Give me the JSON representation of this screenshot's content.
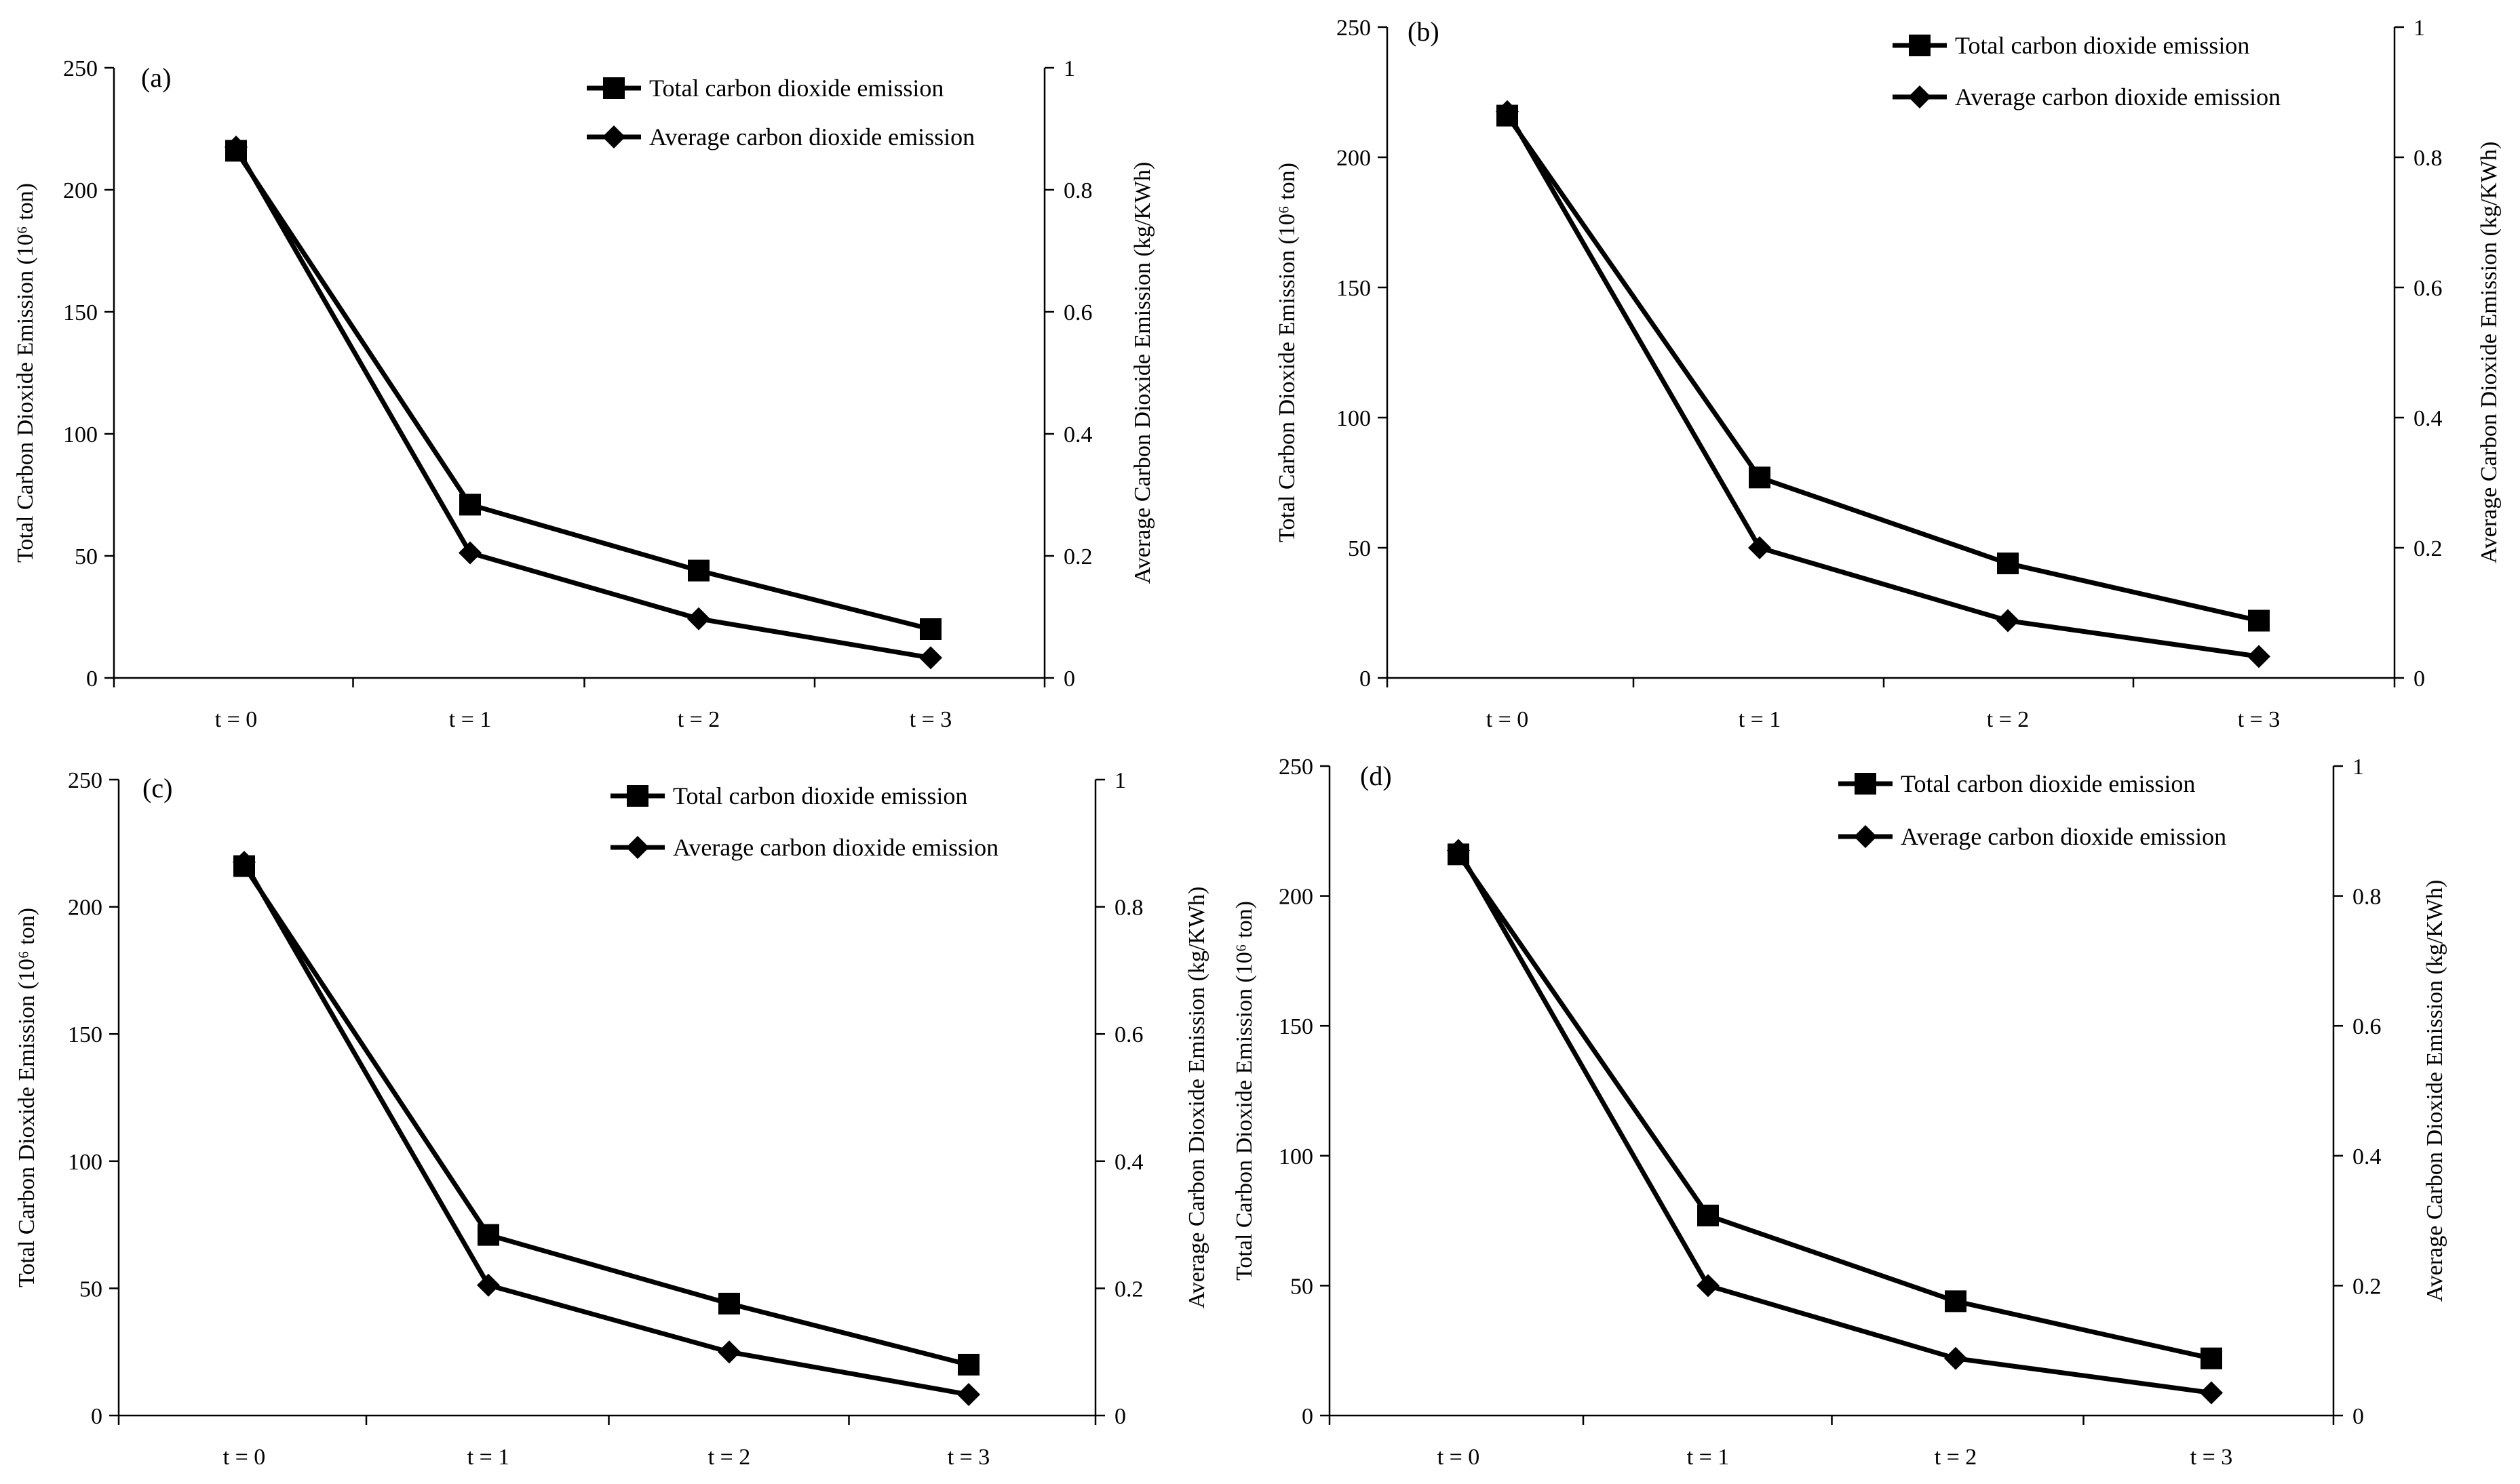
{
  "chart_data": [
    {
      "type": "line",
      "panel_label": "(a)",
      "categories": [
        "t = 0",
        "t = 1",
        "t = 2",
        "t = 3"
      ],
      "ylabel": "Total Carbon Dioxide Emission (10⁶ ton)",
      "y2label": "Average Carbon Dioxide Emission (kg/KWh)",
      "ylim": [
        0,
        250
      ],
      "yticks": [
        "0",
        "50",
        "100",
        "150",
        "200",
        "250"
      ],
      "y2lim": [
        0,
        1
      ],
      "y2ticks": [
        "0",
        "0.2",
        "0.4",
        "0.6",
        "0.8",
        "1"
      ],
      "legend_position": "top-right",
      "series": [
        {
          "name": "Total carbon dioxide emission",
          "axis": "left",
          "marker": "square",
          "values": [
            216,
            71,
            44,
            20
          ]
        },
        {
          "name": "Average carbon dioxide emission",
          "axis": "right",
          "marker": "diamond",
          "values": [
            0.87,
            0.205,
            0.097,
            0.033
          ]
        }
      ]
    },
    {
      "type": "line",
      "panel_label": "(b)",
      "categories": [
        "t = 0",
        "t = 1",
        "t = 2",
        "t = 3"
      ],
      "ylabel": "Total Carbon Dioxide Emission (10⁶ ton)",
      "y2label": "Average Carbon Dioxide Emission (kg/KWh)",
      "ylim": [
        0,
        250
      ],
      "yticks": [
        "0",
        "50",
        "100",
        "150",
        "200",
        "250"
      ],
      "y2lim": [
        0,
        1
      ],
      "y2ticks": [
        "0",
        "0.2",
        "0.4",
        "0.6",
        "0.8",
        "1"
      ],
      "legend_position": "top-right",
      "series": [
        {
          "name": "Total carbon dioxide emission",
          "axis": "left",
          "marker": "square",
          "values": [
            216,
            77,
            44,
            22
          ]
        },
        {
          "name": "Average carbon dioxide emission",
          "axis": "right",
          "marker": "diamond",
          "values": [
            0.87,
            0.2,
            0.088,
            0.033
          ]
        }
      ]
    },
    {
      "type": "line",
      "panel_label": "(c)",
      "categories": [
        "t = 0",
        "t = 1",
        "t = 2",
        "t = 3"
      ],
      "ylabel": "Total Carbon Dioxide Emission (10⁶ ton)",
      "y2label": "Average Carbon Dioxide Emission (kg/KWh)",
      "ylim": [
        0,
        250
      ],
      "yticks": [
        "0",
        "50",
        "100",
        "150",
        "200",
        "250"
      ],
      "y2lim": [
        0,
        1
      ],
      "y2ticks": [
        "0",
        "0.2",
        "0.4",
        "0.6",
        "0.8",
        "1"
      ],
      "legend_position": "top-right",
      "series": [
        {
          "name": "Total carbon dioxide emission",
          "axis": "left",
          "marker": "square",
          "values": [
            216,
            71,
            44,
            20
          ]
        },
        {
          "name": "Average carbon dioxide emission",
          "axis": "right",
          "marker": "diamond",
          "values": [
            0.87,
            0.205,
            0.1,
            0.033
          ]
        }
      ]
    },
    {
      "type": "line",
      "panel_label": "(d)",
      "categories": [
        "t = 0",
        "t = 1",
        "t = 2",
        "t = 3"
      ],
      "ylabel": "Total Carbon Dioxide Emission (10⁶ ton)",
      "y2label": "Average Carbon Dioxide Emission (kg/KWh)",
      "ylim": [
        0,
        250
      ],
      "yticks": [
        "0",
        "50",
        "100",
        "150",
        "200",
        "250"
      ],
      "y2lim": [
        0,
        1
      ],
      "y2ticks": [
        "0",
        "0.2",
        "0.4",
        "0.6",
        "0.8",
        "1"
      ],
      "legend_position": "top-right",
      "series": [
        {
          "name": "Total carbon dioxide emission",
          "axis": "left",
          "marker": "square",
          "values": [
            216,
            77,
            44,
            22
          ]
        },
        {
          "name": "Average carbon dioxide emission",
          "axis": "right",
          "marker": "diamond",
          "values": [
            0.87,
            0.2,
            0.088,
            0.035
          ]
        }
      ]
    }
  ]
}
